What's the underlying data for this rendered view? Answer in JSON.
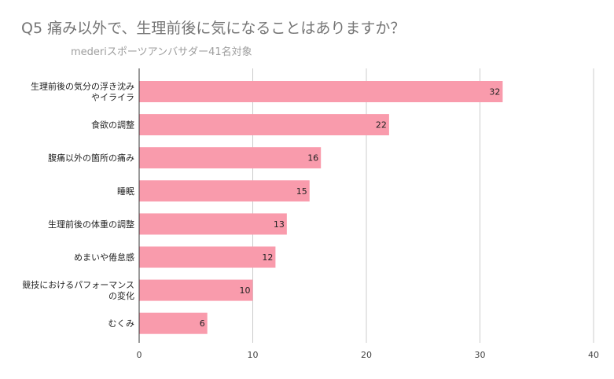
{
  "chart_data": {
    "type": "bar",
    "orientation": "horizontal",
    "title": "Q5 痛み以外で、生理前後に気になることはありますか？",
    "subtitle": "mederiスポーツアンバサダー41名対象",
    "categories": [
      "生理前後の気分の浮き沈み\nやイライラ",
      "食欲の調整",
      "腹痛以外の箇所の痛み",
      "睡眠",
      "生理前後の体重の調整",
      "めまいや倦怠感",
      "競技におけるパフォーマンス\nの変化",
      "むくみ"
    ],
    "values": [
      32,
      22,
      16,
      15,
      13,
      12,
      10,
      6
    ],
    "xlim": [
      0,
      40
    ],
    "xticks": [
      0,
      10,
      20,
      30,
      40
    ],
    "grid": true,
    "legend": "none",
    "bar_color": "#f99bac",
    "grid_color": "#cccccc",
    "axis_color": "#333333"
  }
}
